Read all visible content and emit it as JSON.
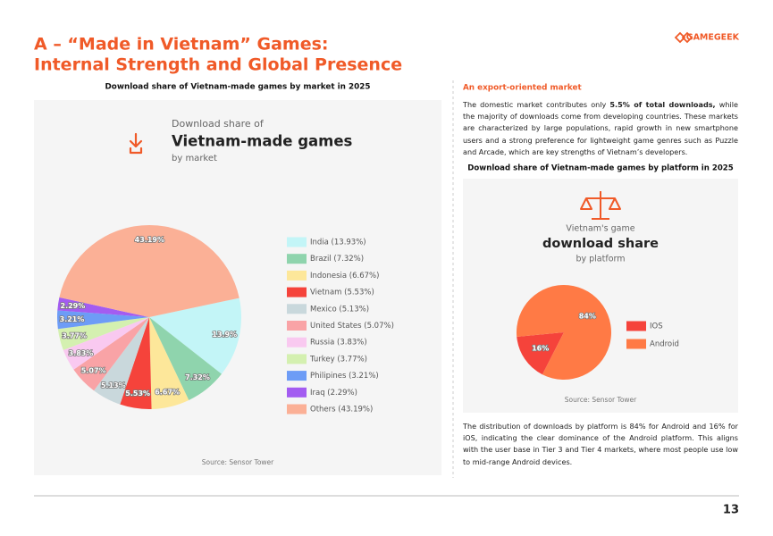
{
  "header": {
    "title_line1": "A – “Made in Vietnam” Games:",
    "title_line2": "Internal Strength and Global Presence",
    "logo": "GAMEGEEK"
  },
  "chart_data": [
    {
      "type": "pie",
      "title": "Download share of Vietnam-made games by market in 2025",
      "card_kicker": "Download share of",
      "card_title": "Vietnam-made games",
      "card_subtitle": "by market",
      "categories": [
        "India (13.93%)",
        "Brazil (7.32%)",
        "Indonesia (6.67%)",
        "Vietnam (5.53%)",
        "Mexico (5.13%)",
        "United States (5.07%)",
        "Russia (3.83%)",
        "Turkey (3.77%)",
        "Philipines (3.21%)",
        "Iraq (2.29%)",
        "Others (43.19%)"
      ],
      "values": [
        13.93,
        7.32,
        6.67,
        5.53,
        5.13,
        5.07,
        3.83,
        3.77,
        3.21,
        2.29,
        43.19
      ],
      "value_labels": [
        "13.9%",
        "7.32%",
        "6.67%",
        "5.53%",
        "5.13%",
        "5.07%",
        "3.83%",
        "3.77%",
        "3.21%",
        "2.29%",
        "43.19%"
      ],
      "colors": [
        "#c3f5f7",
        "#8fd4ad",
        "#fde79a",
        "#f5433b",
        "#c9d8dc",
        "#f9a3a6",
        "#f9c9f0",
        "#d4f0b0",
        "#6d9cf6",
        "#a35cf1",
        "#fbb096"
      ],
      "source": "Source: Sensor Tower"
    },
    {
      "type": "pie",
      "title": "Download share of Vietnam-made games by platform in 2025",
      "card_kicker": "Vietnam's game",
      "card_title": "download share",
      "card_subtitle": "by platform",
      "categories": [
        "IOS",
        "Android"
      ],
      "values": [
        16,
        84
      ],
      "value_labels": [
        "16%",
        "84%"
      ],
      "colors": [
        "#f5433b",
        "#ff7a45"
      ],
      "source": "Source: Sensor Tower"
    }
  ],
  "text": {
    "section_heading": "An export-oriented market",
    "paragraph1": [
      "The domestic market contributes only ",
      "5.5% of total downloads,",
      " while the majority of downloads come from developing countries. These markets are characterized by large populations, rapid growth in new smartphone users and a strong preference for lightweight game genres such as Puzzle and Arcade, which are key strengths of Vietnam’s developers."
    ],
    "paragraph2": "The distribution of downloads by platform is 84% for Android and 16% for iOS, indicating the clear dominance of the Android platform. This aligns with the user base in Tier 3 and Tier 4 markets, where most people use low to mid-range Android devices."
  },
  "page_number": "13"
}
